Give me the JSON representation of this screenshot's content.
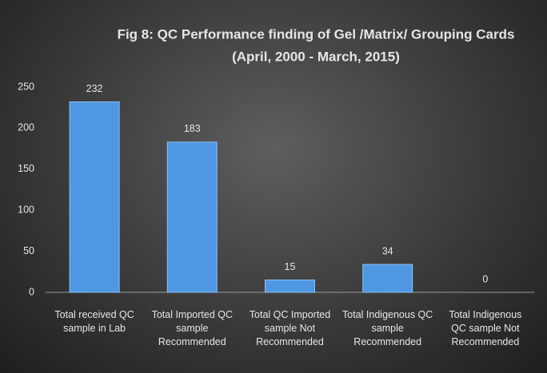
{
  "chart_data": {
    "type": "bar",
    "title": "Fig 8: QC Performance finding of Gel /Matrix/ Grouping Cards",
    "subtitle": "(April, 2000 - March, 2015)",
    "categories": [
      "Total received QC sample in Lab",
      "Total Imported QC sample Recommended",
      "Total QC Imported sample Not Recommended",
      "Total Indigenous QC sample Recommended",
      "Total Indigenous QC sample Not Recommended"
    ],
    "values": [
      232,
      183,
      15,
      34,
      0
    ],
    "color": "#4f97e3",
    "ylim": [
      0,
      250
    ],
    "yticks": [
      0,
      50,
      100,
      150,
      200,
      250
    ],
    "grid": false
  }
}
